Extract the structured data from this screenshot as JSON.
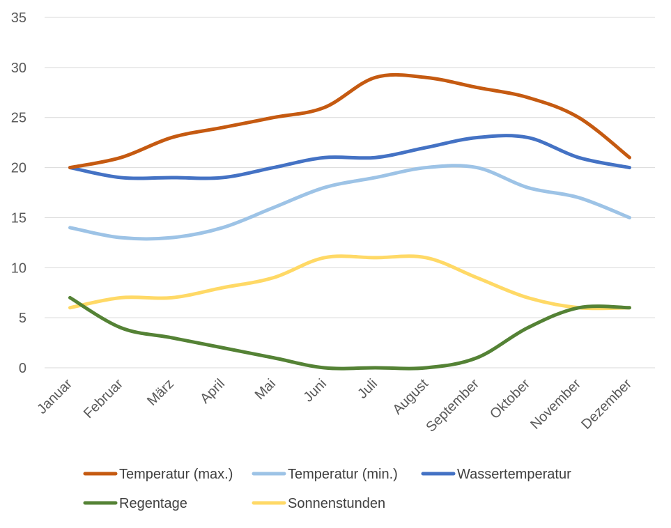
{
  "chart_data": {
    "type": "line",
    "smooth": true,
    "categories": [
      "Januar",
      "Februar",
      "März",
      "April",
      "Mai",
      "Juni",
      "Juli",
      "August",
      "September",
      "Oktober",
      "November",
      "Dezember"
    ],
    "ylim": [
      0,
      35
    ],
    "yticks": [
      0,
      5,
      10,
      15,
      20,
      25,
      30,
      35
    ],
    "grid": true,
    "legend_position": "bottom",
    "series": [
      {
        "name": "Temperatur (max.)",
        "color": "#c55a11",
        "values": [
          20,
          21,
          23,
          24,
          25,
          26,
          29,
          29,
          28,
          27,
          25,
          21
        ]
      },
      {
        "name": "Temperatur (min.)",
        "color": "#9dc3e6",
        "values": [
          14,
          13,
          13,
          14,
          16,
          18,
          19,
          20,
          20,
          18,
          17,
          15
        ]
      },
      {
        "name": "Wassertemperatur",
        "color": "#4472c4",
        "values": [
          20,
          19,
          19,
          19,
          20,
          21,
          21,
          22,
          23,
          23,
          21,
          20
        ]
      },
      {
        "name": "Regentage",
        "color": "#548235",
        "values": [
          7,
          4,
          3,
          2,
          1,
          0,
          0,
          0,
          1,
          4,
          6,
          6
        ]
      },
      {
        "name": "Sonnenstunden",
        "color": "#ffd966",
        "values": [
          6,
          7,
          7,
          8,
          9,
          11,
          11,
          11,
          9,
          7,
          6,
          6
        ]
      }
    ]
  }
}
